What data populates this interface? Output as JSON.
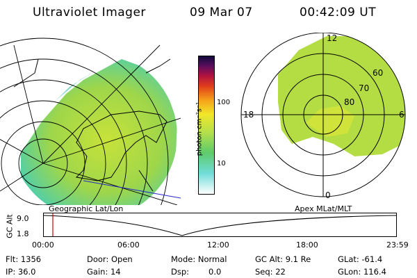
{
  "header": {
    "title": "Ultraviolet Imager",
    "date": "09 Mar 07",
    "time": "00:42:09 UT"
  },
  "colorbar": {
    "unit_label": "photon cm⁻²s⁻¹",
    "ticks": [
      "100",
      "10"
    ]
  },
  "polar_plot": {
    "mlt_labels": [
      "12",
      "18",
      "6",
      "0"
    ],
    "lat_labels": [
      "60",
      "70",
      "80"
    ]
  },
  "panel_labels": {
    "left": "Geographic Lat/Lon",
    "right": "Apex MLat/MLT"
  },
  "altitude_strip": {
    "axis_label": "GC Alt",
    "y_ticks": [
      "9.0",
      "1.8"
    ],
    "x_ticks": [
      "00:00",
      "06:00",
      "12:00",
      "18:00",
      "23:59"
    ],
    "marker_time": "00:42"
  },
  "status": {
    "flt": "Flt: 1356",
    "ip": "IP: 36.0",
    "door": "Door: Open",
    "gain": "Gain: 14",
    "mode": "Mode: Normal",
    "dsp_label": "Dsp:",
    "dsp_value": "0.0",
    "gc_alt": "GC Alt: 9.1 Re",
    "seq": "Seq: 22",
    "glat": "GLat: -61.4",
    "glon": "GLon: 116.4"
  },
  "colors": {
    "marker": "#cc0000",
    "land_line": "#000000",
    "extra_line": "#2222cc"
  }
}
